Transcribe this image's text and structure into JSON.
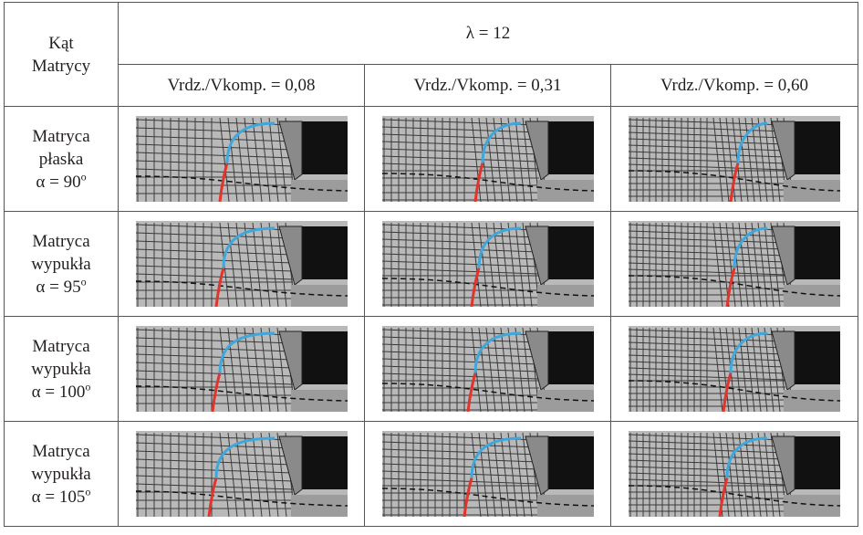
{
  "table": {
    "corner": [
      "Kąt",
      "Matrycy"
    ],
    "group_header": "λ = 12",
    "columns": [
      "Vrdz./Vkomp. = 0,08",
      "Vrdz./Vkomp. = 0,31",
      "Vrdz./Vkomp. = 0,60"
    ],
    "rows": [
      {
        "name": [
          "Matryca",
          "płaska"
        ],
        "angle": "α = 90",
        "degree": "o"
      },
      {
        "name": [
          "Matryca",
          "wypukła"
        ],
        "angle": "α = 95",
        "degree": "o"
      },
      {
        "name": [
          "Matryca",
          "wypukła"
        ],
        "angle": "α = 100",
        "degree": "o"
      },
      {
        "name": [
          "Matryca",
          "wypukła"
        ],
        "angle": "α = 105",
        "degree": "o"
      }
    ]
  }
}
